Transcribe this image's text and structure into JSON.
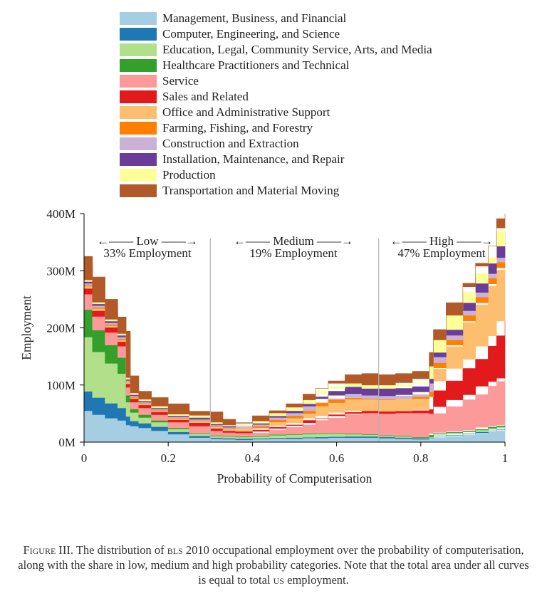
{
  "chart_data": {
    "type": "area",
    "xlabel": "Probability of Computerisation",
    "ylabel": "Employment",
    "xlim": [
      0,
      1
    ],
    "ylim": [
      0,
      400000000
    ],
    "x_ticks": [
      "0",
      "0.2",
      "0.4",
      "0.6",
      "0.8",
      "1"
    ],
    "y_ticks": [
      "0M",
      "100M",
      "200M",
      "300M",
      "400M"
    ],
    "legend_placement": "top",
    "thresholds": [
      0.3,
      0.7
    ],
    "regions": [
      {
        "label": "Low",
        "share": "33% Employment",
        "arrow_left": "←——",
        "arrow_right": "——→"
      },
      {
        "label": "Medium",
        "share": "19% Employment",
        "arrow_left": "←——",
        "arrow_right": "——→"
      },
      {
        "label": "High",
        "share": "47% Employment",
        "arrow_left": "←——",
        "arrow_right": "——→"
      }
    ],
    "x": [
      0,
      0.02,
      0.05,
      0.08,
      0.1,
      0.11,
      0.13,
      0.16,
      0.2,
      0.25,
      0.3,
      0.33,
      0.36,
      0.4,
      0.44,
      0.48,
      0.52,
      0.55,
      0.58,
      0.62,
      0.66,
      0.7,
      0.74,
      0.78,
      0.82,
      0.83,
      0.86,
      0.9,
      0.93,
      0.96,
      0.98,
      1.0
    ],
    "series": [
      {
        "name": "Management, Business, and Financial",
        "color": "#a6cee3",
        "values": [
          60,
          55,
          48,
          42,
          38,
          30,
          28,
          25,
          20,
          14,
          8,
          6,
          5,
          4,
          5,
          6,
          6,
          7,
          7,
          8,
          8,
          8,
          7,
          6,
          5,
          8,
          10,
          12,
          14,
          18,
          20,
          22
        ]
      },
      {
        "name": "Computer, Engineering, and Science",
        "color": "#1f78b4",
        "values": [
          38,
          34,
          30,
          26,
          22,
          15,
          9,
          8,
          7,
          4,
          3,
          2,
          2,
          2,
          2,
          2,
          2,
          2,
          2,
          2,
          2,
          2,
          2,
          2,
          2,
          2,
          2,
          2,
          2,
          2,
          2,
          2
        ]
      },
      {
        "name": "Education, Legal, Community Service, Arts, and Media",
        "color": "#b2df8a",
        "values": [
          105,
          95,
          80,
          70,
          60,
          25,
          15,
          10,
          8,
          5,
          4,
          3,
          3,
          3,
          4,
          5,
          5,
          6,
          6,
          5,
          4,
          3,
          2,
          2,
          1,
          2,
          2,
          2,
          2,
          2,
          2,
          2
        ]
      },
      {
        "name": "Healthcare Practitioners and Technical",
        "color": "#33a02c",
        "values": [
          55,
          48,
          38,
          32,
          28,
          12,
          6,
          5,
          3,
          2,
          1,
          1,
          1,
          1,
          1,
          1,
          1,
          1,
          1,
          1,
          1,
          1,
          1,
          1,
          1,
          3,
          3,
          3,
          3,
          4,
          4,
          4
        ]
      },
      {
        "name": "Service",
        "color": "#fb9a99",
        "values": [
          30,
          27,
          24,
          22,
          20,
          14,
          12,
          12,
          10,
          10,
          12,
          8,
          6,
          6,
          9,
          12,
          16,
          22,
          26,
          32,
          35,
          37,
          38,
          40,
          42,
          35,
          45,
          55,
          62,
          72,
          78,
          82
        ]
      },
      {
        "name": "Sales and Related",
        "color": "#e31a1c",
        "values": [
          12,
          10,
          10,
          9,
          8,
          6,
          6,
          5,
          5,
          4,
          6,
          4,
          3,
          3,
          3,
          3,
          4,
          4,
          4,
          4,
          5,
          4,
          4,
          4,
          6,
          40,
          45,
          55,
          62,
          70,
          80,
          100
        ]
      },
      {
        "name": "Office and Administrative Support",
        "color": "#fdbf6f",
        "values": [
          5,
          4,
          4,
          3,
          3,
          3,
          2,
          2,
          2,
          2,
          3,
          3,
          3,
          5,
          10,
          12,
          15,
          20,
          22,
          22,
          22,
          20,
          20,
          20,
          22,
          38,
          60,
          80,
          95,
          105,
          115,
          135
        ]
      },
      {
        "name": "Farming, Fishing, and Forestry",
        "color": "#ff7f00",
        "values": [
          2,
          2,
          2,
          2,
          2,
          1,
          1,
          1,
          1,
          1,
          1,
          1,
          1,
          1,
          1,
          1,
          1,
          1,
          1,
          1,
          1,
          1,
          1,
          1,
          1,
          2,
          3,
          3,
          4,
          4,
          4,
          4
        ]
      },
      {
        "name": "Construction and Extraction",
        "color": "#cab2d6",
        "values": [
          4,
          3,
          3,
          3,
          3,
          2,
          2,
          2,
          2,
          2,
          2,
          2,
          2,
          3,
          4,
          4,
          5,
          6,
          7,
          7,
          6,
          6,
          6,
          7,
          8,
          9,
          9,
          10,
          10,
          10,
          10,
          10
        ]
      },
      {
        "name": "Installation, Maintenance, and Repair",
        "color": "#6a3d9a",
        "values": [
          4,
          3,
          3,
          3,
          3,
          2,
          2,
          2,
          2,
          2,
          3,
          2,
          2,
          3,
          4,
          5,
          8,
          10,
          13,
          15,
          13,
          12,
          13,
          14,
          15,
          10,
          8,
          8,
          8,
          8,
          8,
          8
        ]
      },
      {
        "name": "Production",
        "color": "#ffff99",
        "values": [
          4,
          3,
          3,
          3,
          3,
          3,
          3,
          3,
          3,
          3,
          4,
          3,
          2,
          2,
          3,
          4,
          4,
          5,
          5,
          6,
          6,
          6,
          6,
          7,
          8,
          8,
          10,
          14,
          16,
          18,
          20,
          22
        ]
      },
      {
        "name": "Transportation and Material Moving",
        "color": "#b15928",
        "values": [
          6,
          5,
          5,
          4,
          4,
          3,
          3,
          3,
          4,
          5,
          6,
          5,
          4,
          4,
          5,
          6,
          7,
          10,
          13,
          15,
          17,
          18,
          20,
          20,
          22,
          22,
          25,
          28,
          30,
          30,
          32,
          9
        ]
      }
    ]
  },
  "caption": {
    "fig_label": "Figure III",
    "part1": ". The distribution of ",
    "bls": "bls",
    "part2": " 2010 occupational employment over the probability of computerisation, along with the share in low, medium and high probability categories. Note that the total area under all curves is equal to total ",
    "us": "us",
    "part3": " employment."
  }
}
